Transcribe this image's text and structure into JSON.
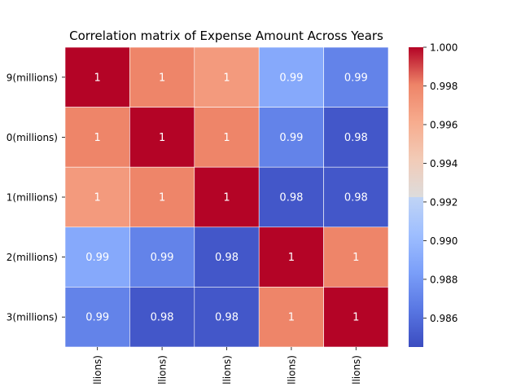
{
  "chart_data": {
    "type": "heatmap",
    "title": "Correlation matrix of Expense Amount Across Years",
    "row_labels": [
      "9(millions)",
      "0(millions)",
      "1(millions)",
      "2(millions)",
      "3(millions)"
    ],
    "col_labels": [
      "llions)",
      "llions)",
      "llions)",
      "llions)",
      "llions)"
    ],
    "values": [
      [
        1.0,
        0.998,
        0.997,
        0.989,
        0.987
      ],
      [
        0.998,
        1.0,
        0.998,
        0.987,
        0.985
      ],
      [
        0.997,
        0.998,
        1.0,
        0.985,
        0.985
      ],
      [
        0.989,
        0.987,
        0.985,
        1.0,
        0.998
      ],
      [
        0.987,
        0.985,
        0.985,
        0.998,
        1.0
      ]
    ],
    "annotations": [
      [
        "1",
        "1",
        "1",
        "0.99",
        "0.99"
      ],
      [
        "1",
        "1",
        "1",
        "0.99",
        "0.98"
      ],
      [
        "1",
        "1",
        "1",
        "0.98",
        "0.98"
      ],
      [
        "0.99",
        "0.99",
        "0.98",
        "1",
        "1"
      ],
      [
        "0.99",
        "0.98",
        "0.98",
        "1",
        "1"
      ]
    ],
    "colormap": "coolwarm",
    "vmin": 0.9845,
    "vmax": 1.0,
    "colorbar_ticks": [
      "1.000",
      "0.998",
      "0.996",
      "0.994",
      "0.992",
      "0.990",
      "0.988",
      "0.986"
    ],
    "colorbar_tick_values": [
      1.0,
      0.998,
      0.996,
      0.994,
      0.992,
      0.99,
      0.988,
      0.986
    ],
    "cell_line_color": "#ffffff"
  }
}
